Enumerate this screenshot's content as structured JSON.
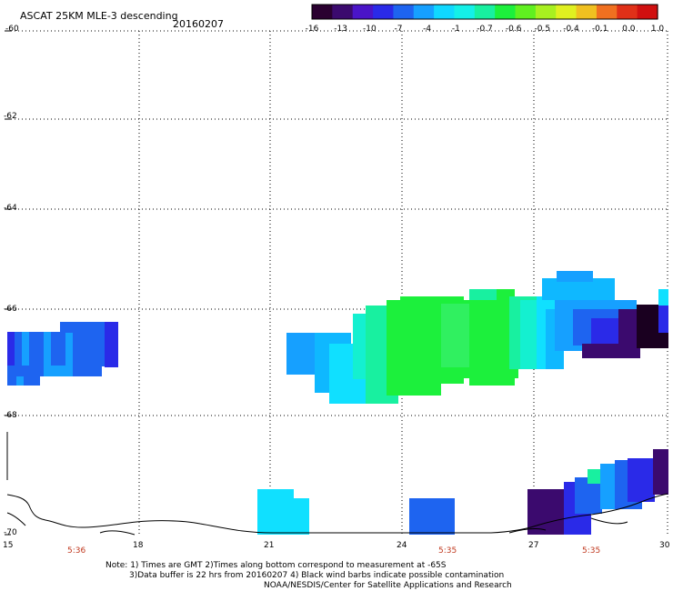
{
  "title": "ASCAT 25KM MLE-3 descending",
  "date": "20160207",
  "colorbar": {
    "colors": [
      "#2a0030",
      "#3b0a6e",
      "#4a14c8",
      "#2a2ae8",
      "#1e64f0",
      "#16a0ff",
      "#10d8ff",
      "#14f0e8",
      "#18f0a0",
      "#1cf03c",
      "#60f020",
      "#a8f020",
      "#e0f020",
      "#f0c020",
      "#f07020",
      "#e03018",
      "#d01010"
    ],
    "tick_labels": [
      "-16",
      "-13",
      "-10",
      "-7",
      "-4",
      "-1",
      "-0.7",
      "-0.6",
      "-0.5",
      "-0.4",
      "-0.1",
      "0.0",
      "1.0"
    ]
  },
  "map": {
    "lat_labels": [
      "-60",
      "-62",
      "-64",
      "-66",
      "-68",
      "-70"
    ],
    "lon_labels": [
      "15",
      "18",
      "21",
      "24",
      "27",
      "30"
    ],
    "time_labels": [
      "5:36",
      "5:35",
      "5:35"
    ]
  },
  "notes": {
    "line1": "Note: 1) Times are GMT 2)Times along bottom correspond to measurement at -65S",
    "line2": "3)Data buffer is 22 hrs from 20160207 4) Black wind barbs indicate possible contamination",
    "line3": "NOAA/NESDIS/Center for Satellite Applications and Research"
  }
}
